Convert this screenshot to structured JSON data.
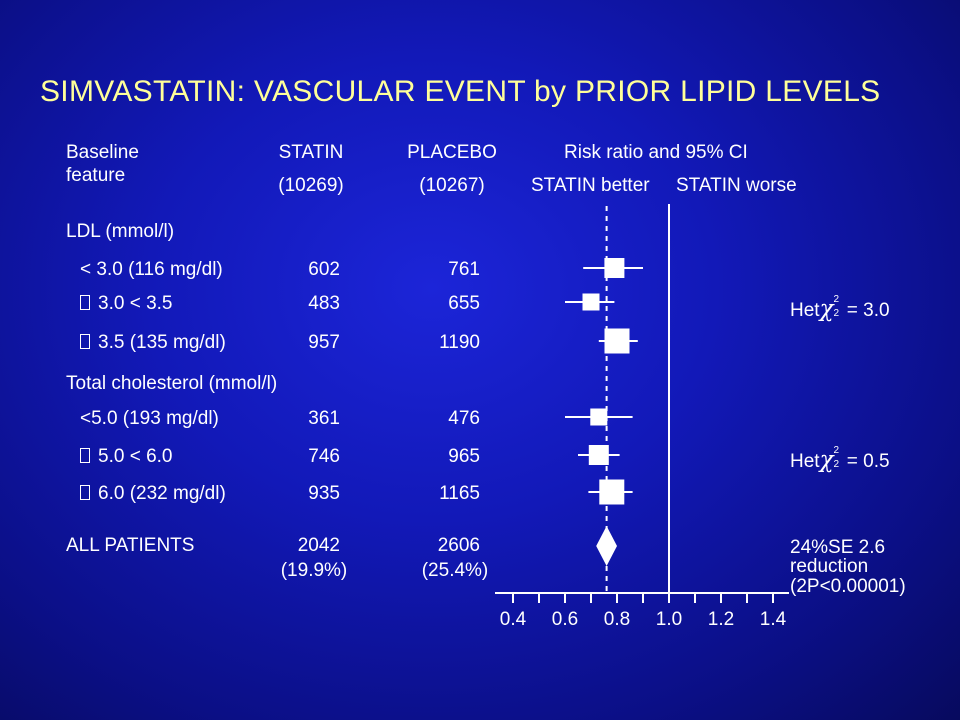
{
  "title": "SIMVASTATIN: VASCULAR EVENT by PRIOR LIPID LEVELS",
  "header": {
    "baseline_line1": "Baseline",
    "baseline_line2": "feature",
    "statin": "STATIN",
    "statin_n": "(10269)",
    "placebo": "PLACEBO",
    "placebo_n": "(10267)",
    "risk_ratio": "Risk ratio and 95% CI",
    "better": "STATIN better",
    "worse": "STATIN worse"
  },
  "groups": [
    {
      "label": "LDL (mmol/l)"
    },
    {
      "label": "Total cholesterol (mmol/l)"
    }
  ],
  "rows": [
    {
      "label": "< 3.0 (116 mg/dl)",
      "bullet": false,
      "statin": "602",
      "placebo": "761"
    },
    {
      "label": "3.0 < 3.5",
      "bullet": true,
      "statin": "483",
      "placebo": "655"
    },
    {
      "label": "3.5 (135 mg/dl)",
      "bullet": true,
      "statin": "957",
      "placebo": "1190"
    },
    {
      "label": "<5.0 (193 mg/dl)",
      "bullet": false,
      "statin": "361",
      "placebo": "476"
    },
    {
      "label": "5.0 < 6.0",
      "bullet": true,
      "statin": "746",
      "placebo": "965"
    },
    {
      "label": "6.0 (232 mg/dl)",
      "bullet": true,
      "statin": "935",
      "placebo": "1165"
    }
  ],
  "total": {
    "label": "ALL PATIENTS",
    "statin": "2042",
    "statin_pct": "(19.9%)",
    "placebo": "2606",
    "placebo_pct": "(25.4%)"
  },
  "heterogeneity": [
    {
      "prefix": "Het",
      "symbol": "χ",
      "sup": "2",
      "sub": "2",
      "value": "= 3.0"
    },
    {
      "prefix": "Het",
      "symbol": "χ",
      "sup": "2",
      "sub": "2",
      "value": "= 0.5"
    }
  ],
  "summary_note": {
    "line1": "24%SE 2.6",
    "line2": "reduction",
    "line3": "(2P<0.00001)"
  },
  "colors": {
    "title": "#ffff99",
    "text": "#ffffff",
    "background": "#1219b8"
  },
  "chart_data": {
    "type": "scatter",
    "subtype": "forest-plot",
    "x_label": "Risk ratio and 95% CI",
    "x_ticks": [
      0.4,
      0.6,
      0.8,
      1.0,
      1.2,
      1.4
    ],
    "x_tick_labels": [
      "0.4",
      "0.6",
      "0.8",
      "1.0",
      "1.2",
      "1.4"
    ],
    "xlim": [
      0.4,
      1.4
    ],
    "reference_line": 1.0,
    "overall_line": 0.76,
    "estimates": [
      {
        "row": "< 3.0 (116 mg/dl)",
        "rr": 0.79,
        "ci_low": 0.67,
        "ci_high": 0.9,
        "weight": "medium"
      },
      {
        "row": "3.0 < 3.5",
        "rr": 0.7,
        "ci_low": 0.6,
        "ci_high": 0.79,
        "weight": "small"
      },
      {
        "row": "3.5 (135 mg/dl)",
        "rr": 0.8,
        "ci_low": 0.73,
        "ci_high": 0.88,
        "weight": "large"
      },
      {
        "row": "<5.0 (193 mg/dl)",
        "rr": 0.73,
        "ci_low": 0.6,
        "ci_high": 0.86,
        "weight": "small"
      },
      {
        "row": "5.0 < 6.0",
        "rr": 0.73,
        "ci_low": 0.65,
        "ci_high": 0.81,
        "weight": "medium"
      },
      {
        "row": "6.0 (232 mg/dl)",
        "rr": 0.78,
        "ci_low": 0.69,
        "ci_high": 0.86,
        "weight": "large"
      }
    ],
    "overall": {
      "row": "ALL PATIENTS",
      "rr": 0.76,
      "ci_low": 0.72,
      "ci_high": 0.8
    }
  }
}
